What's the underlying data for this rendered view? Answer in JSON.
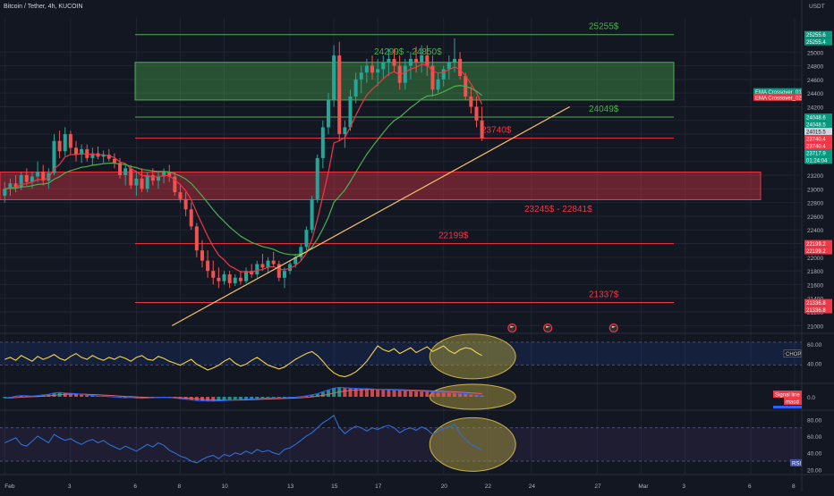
{
  "header": {
    "title": "Bitcoin / Tether, 4h, KUCOIN",
    "currency": "USDT"
  },
  "colors": {
    "bg": "#131722",
    "grid": "#1f2433",
    "text": "#b2b5be",
    "up": "#26a69a",
    "down": "#ef5350",
    "green_line": "#4caf50",
    "red_line": "#f23645",
    "ema_fast": "#f23645",
    "ema_slow": "#4caf50",
    "trendline": "#f5c26b",
    "chop_line": "#f5d547",
    "rsi_line": "#2f6fd6",
    "ellipse": "#a89a3c"
  },
  "chart_data": {
    "type": "candlestick",
    "title": "Bitcoin / Tether, 4h, KUCOIN",
    "ylim": [
      20900,
      25500
    ],
    "y_ticks": [
      25000,
      24800,
      24600,
      24400,
      24200,
      24000,
      23800,
      23600,
      23400,
      23200,
      23000,
      22800,
      22600,
      22400,
      22200,
      22000,
      21800,
      21600,
      21400,
      21200,
      21000
    ],
    "x_tick_labels": [
      "Feb",
      "3",
      "6",
      "8",
      "10",
      "13",
      "15",
      "17",
      "20",
      "22",
      "24",
      "27",
      "Mar",
      "3",
      "6",
      "8"
    ],
    "x_tick_bars": [
      0,
      12,
      24,
      32,
      40,
      52,
      60,
      68,
      80,
      88,
      96,
      108,
      116,
      124,
      136,
      144
    ],
    "candles_x_start": 0,
    "candles": [
      [
        22900,
        23100,
        22800,
        23000
      ],
      [
        23000,
        23150,
        22900,
        23080
      ],
      [
        23080,
        23200,
        22950,
        23020
      ],
      [
        23020,
        23250,
        22980,
        23200
      ],
      [
        23200,
        23300,
        23050,
        23100
      ],
      [
        23100,
        23250,
        23000,
        23180
      ],
      [
        23180,
        23400,
        23100,
        23250
      ],
      [
        23250,
        23350,
        23050,
        23120
      ],
      [
        23120,
        23300,
        23000,
        23230
      ],
      [
        23230,
        23800,
        23200,
        23700
      ],
      [
        23700,
        23850,
        23450,
        23550
      ],
      [
        23550,
        23900,
        23480,
        23800
      ],
      [
        23800,
        23850,
        23500,
        23600
      ],
      [
        23600,
        23700,
        23400,
        23500
      ],
      [
        23500,
        23650,
        23380,
        23580
      ],
      [
        23580,
        23650,
        23400,
        23450
      ],
      [
        23450,
        23600,
        23350,
        23520
      ],
      [
        23520,
        23620,
        23430,
        23470
      ],
      [
        23470,
        23560,
        23380,
        23500
      ],
      [
        23500,
        23580,
        23400,
        23440
      ],
      [
        23440,
        23520,
        23300,
        23380
      ],
      [
        23380,
        23450,
        23150,
        23200
      ],
      [
        23200,
        23350,
        23050,
        23300
      ],
      [
        23300,
        23350,
        23000,
        23050
      ],
      [
        23050,
        23250,
        22900,
        23150
      ],
      [
        23150,
        23300,
        22950,
        23000
      ],
      [
        23000,
        23250,
        22950,
        23200
      ],
      [
        23200,
        23300,
        23050,
        23120
      ],
      [
        23120,
        23250,
        23000,
        23180
      ],
      [
        23180,
        23300,
        23080,
        23250
      ],
      [
        23250,
        23350,
        23100,
        23180
      ],
      [
        23180,
        23250,
        22900,
        22950
      ],
      [
        22950,
        23050,
        22800,
        22850
      ],
      [
        22850,
        22950,
        22600,
        22700
      ],
      [
        22700,
        22800,
        22400,
        22450
      ],
      [
        22450,
        22500,
        22000,
        22100
      ],
      [
        22100,
        22250,
        21850,
        21950
      ],
      [
        21950,
        22100,
        21700,
        21800
      ],
      [
        21800,
        21950,
        21600,
        21700
      ],
      [
        21700,
        21850,
        21550,
        21650
      ],
      [
        21650,
        21800,
        21600,
        21750
      ],
      [
        21750,
        21800,
        21550,
        21620
      ],
      [
        21620,
        21750,
        21580,
        21700
      ],
      [
        21700,
        21800,
        21600,
        21650
      ],
      [
        21650,
        21850,
        21620,
        21800
      ],
      [
        21800,
        21900,
        21700,
        21750
      ],
      [
        21750,
        21950,
        21700,
        21900
      ],
      [
        21900,
        22050,
        21800,
        21850
      ],
      [
        21850,
        22000,
        21780,
        21950
      ],
      [
        21950,
        22080,
        21850,
        21900
      ],
      [
        21900,
        21950,
        21650,
        21700
      ],
      [
        21700,
        21850,
        21550,
        21800
      ],
      [
        21800,
        21950,
        21750,
        21900
      ],
      [
        21900,
        22050,
        21850,
        22000
      ],
      [
        22000,
        22200,
        21950,
        22150
      ],
      [
        22150,
        22450,
        22100,
        22400
      ],
      [
        22400,
        22900,
        22350,
        22850
      ],
      [
        22850,
        23500,
        22800,
        23450
      ],
      [
        23450,
        24000,
        23300,
        23900
      ],
      [
        23900,
        24400,
        23800,
        24300
      ],
      [
        24300,
        25100,
        24200,
        24950
      ],
      [
        24950,
        25150,
        23700,
        23800
      ],
      [
        23800,
        24000,
        23600,
        23900
      ],
      [
        23900,
        24450,
        23850,
        24350
      ],
      [
        24350,
        24700,
        24250,
        24600
      ],
      [
        24600,
        24800,
        24400,
        24700
      ],
      [
        24700,
        24900,
        24550,
        24800
      ],
      [
        24800,
        24950,
        24600,
        24700
      ],
      [
        24700,
        24900,
        24500,
        24750
      ],
      [
        24750,
        24950,
        24600,
        24850
      ],
      [
        24850,
        25050,
        24650,
        24900
      ],
      [
        24900,
        25050,
        24700,
        24800
      ],
      [
        24800,
        24950,
        24450,
        24550
      ],
      [
        24550,
        24900,
        24450,
        24800
      ],
      [
        24800,
        25000,
        24600,
        24900
      ],
      [
        24900,
        25080,
        24700,
        24850
      ],
      [
        24850,
        25100,
        24700,
        24950
      ],
      [
        24950,
        25100,
        24650,
        24800
      ],
      [
        24800,
        24950,
        24350,
        24450
      ],
      [
        24450,
        24700,
        24400,
        24600
      ],
      [
        24600,
        24800,
        24500,
        24750
      ],
      [
        24750,
        24950,
        24600,
        24850
      ],
      [
        24850,
        25200,
        24700,
        24900
      ],
      [
        24900,
        25000,
        24600,
        24650
      ],
      [
        24650,
        24700,
        24300,
        24350
      ],
      [
        24350,
        24500,
        24100,
        24200
      ],
      [
        24200,
        24350,
        23900,
        24000
      ],
      [
        24000,
        24200,
        23700,
        23740
      ]
    ],
    "ema_fast_label": "EMA Crossover_02",
    "ema_slow_label": "EMA Crossover_01",
    "levels": [
      {
        "value": 25255,
        "label": "25255$",
        "color": "green"
      },
      {
        "value": 24049,
        "label": "24049$",
        "color": "green"
      },
      {
        "value": 23740,
        "label": "23740$",
        "color": "red"
      },
      {
        "value": 22199,
        "label": "22199$",
        "color": "red"
      },
      {
        "value": 21337,
        "label": "21337$",
        "color": "red"
      }
    ],
    "zones": [
      {
        "high": 24850,
        "low": 24299,
        "label": "24299$ - 24850$",
        "color": "green"
      },
      {
        "high": 23245,
        "low": 22841,
        "label": "23245$ - 22841$",
        "color": "red"
      }
    ],
    "trendline": {
      "from": [
        30.5,
        21000
      ],
      "to": [
        103,
        24200
      ]
    },
    "price_labels": [
      {
        "value": 25255.6,
        "text": "25255.6",
        "color": "green"
      },
      {
        "value": 25255.4,
        "text": "25255.4",
        "color": "green"
      },
      {
        "value": 24048.6,
        "text": "24048.6",
        "color": "green"
      },
      {
        "value": 24048.5,
        "text": "24048.5",
        "color": "green"
      },
      {
        "value": 24015.5,
        "text": "24015.5",
        "color": "white"
      },
      {
        "value": 23740.4,
        "text": "23740.4",
        "color": "red"
      },
      {
        "value": 23740.4,
        "text": "23740.4",
        "color": "red"
      },
      {
        "value": 23717.9,
        "text": "23717.9",
        "color": "green"
      },
      {
        "value": 23650,
        "text": "01:24:04",
        "color": "green"
      },
      {
        "value": 22199.2,
        "text": "22199.2",
        "color": "red"
      },
      {
        "value": 22199.2,
        "text": "22199.2",
        "color": "red"
      },
      {
        "value": 21336.8,
        "text": "21336.8",
        "color": "red"
      },
      {
        "value": 21336.8,
        "text": "21336.8",
        "color": "red"
      }
    ],
    "chop": {
      "label": "CHOP",
      "ylim": [
        20,
        70
      ],
      "ticks": [
        60,
        40
      ],
      "band": [
        38.2,
        61.8
      ],
      "values": [
        44,
        46,
        43,
        48,
        45,
        42,
        47,
        44,
        46,
        49,
        45,
        43,
        47,
        50,
        46,
        44,
        48,
        45,
        43,
        46,
        44,
        47,
        45,
        42,
        46,
        48,
        44,
        43,
        47,
        45,
        42,
        40,
        38,
        41,
        44,
        39,
        36,
        33,
        35,
        38,
        42,
        45,
        40,
        37,
        39,
        43,
        46,
        42,
        38,
        36,
        34,
        36,
        40,
        44,
        47,
        50,
        52,
        48,
        42,
        35,
        30,
        27,
        26,
        28,
        31,
        36,
        42,
        50,
        58,
        54,
        52,
        55,
        50,
        53,
        56,
        51,
        54,
        57,
        52,
        55,
        58,
        53,
        50,
        54,
        56,
        55,
        51,
        48
      ]
    },
    "macd": {
      "label": "Signal line",
      "label2": "macd",
      "ylim": [
        -1,
        1
      ],
      "tick": "0.0",
      "values": [
        -0.1,
        -0.05,
        0.05,
        0.1,
        0.08,
        0.06,
        0.1,
        0.15,
        0.2,
        0.3,
        0.35,
        0.3,
        0.28,
        0.25,
        0.2,
        0.15,
        0.1,
        0.06,
        0.04,
        0.02,
        -0.02,
        -0.05,
        -0.08,
        -0.06,
        -0.1,
        -0.12,
        -0.1,
        -0.08,
        -0.05,
        -0.03,
        -0.06,
        -0.1,
        -0.15,
        -0.2,
        -0.25,
        -0.3,
        -0.32,
        -0.34,
        -0.35,
        -0.33,
        -0.3,
        -0.28,
        -0.25,
        -0.22,
        -0.2,
        -0.18,
        -0.15,
        -0.12,
        -0.1,
        -0.08,
        -0.1,
        -0.08,
        -0.05,
        -0.03,
        0.02,
        0.08,
        0.15,
        0.25,
        0.4,
        0.55,
        0.7,
        0.75,
        0.72,
        0.7,
        0.68,
        0.66,
        0.65,
        0.62,
        0.6,
        0.58,
        0.56,
        0.55,
        0.52,
        0.5,
        0.48,
        0.46,
        0.45,
        0.42,
        0.4,
        0.38,
        0.36,
        0.34,
        0.3,
        0.28,
        0.25,
        0.2,
        0.15,
        0.1
      ]
    },
    "rsi": {
      "label": "RSI",
      "ylim": [
        15,
        90
      ],
      "ticks": [
        80,
        60,
        40,
        20
      ],
      "band": [
        30,
        70
      ],
      "values": [
        52,
        55,
        58,
        50,
        48,
        54,
        60,
        56,
        52,
        62,
        58,
        55,
        57,
        53,
        50,
        54,
        56,
        52,
        55,
        50,
        47,
        44,
        48,
        45,
        42,
        46,
        50,
        47,
        52,
        49,
        43,
        40,
        36,
        34,
        30,
        28,
        32,
        35,
        37,
        33,
        38,
        36,
        40,
        38,
        42,
        39,
        44,
        41,
        43,
        40,
        38,
        44,
        46,
        50,
        55,
        60,
        64,
        70,
        76,
        80,
        85,
        70,
        63,
        68,
        72,
        70,
        66,
        70,
        68,
        71,
        73,
        70,
        64,
        68,
        70,
        67,
        71,
        68,
        62,
        66,
        69,
        71,
        74,
        63,
        56,
        50,
        47,
        43
      ]
    },
    "flags": [
      {
        "bar": 92.5,
        "label": "flag-1"
      },
      {
        "bar": 99,
        "label": "flag-2"
      },
      {
        "bar": 111,
        "label": "flag-3"
      }
    ]
  }
}
